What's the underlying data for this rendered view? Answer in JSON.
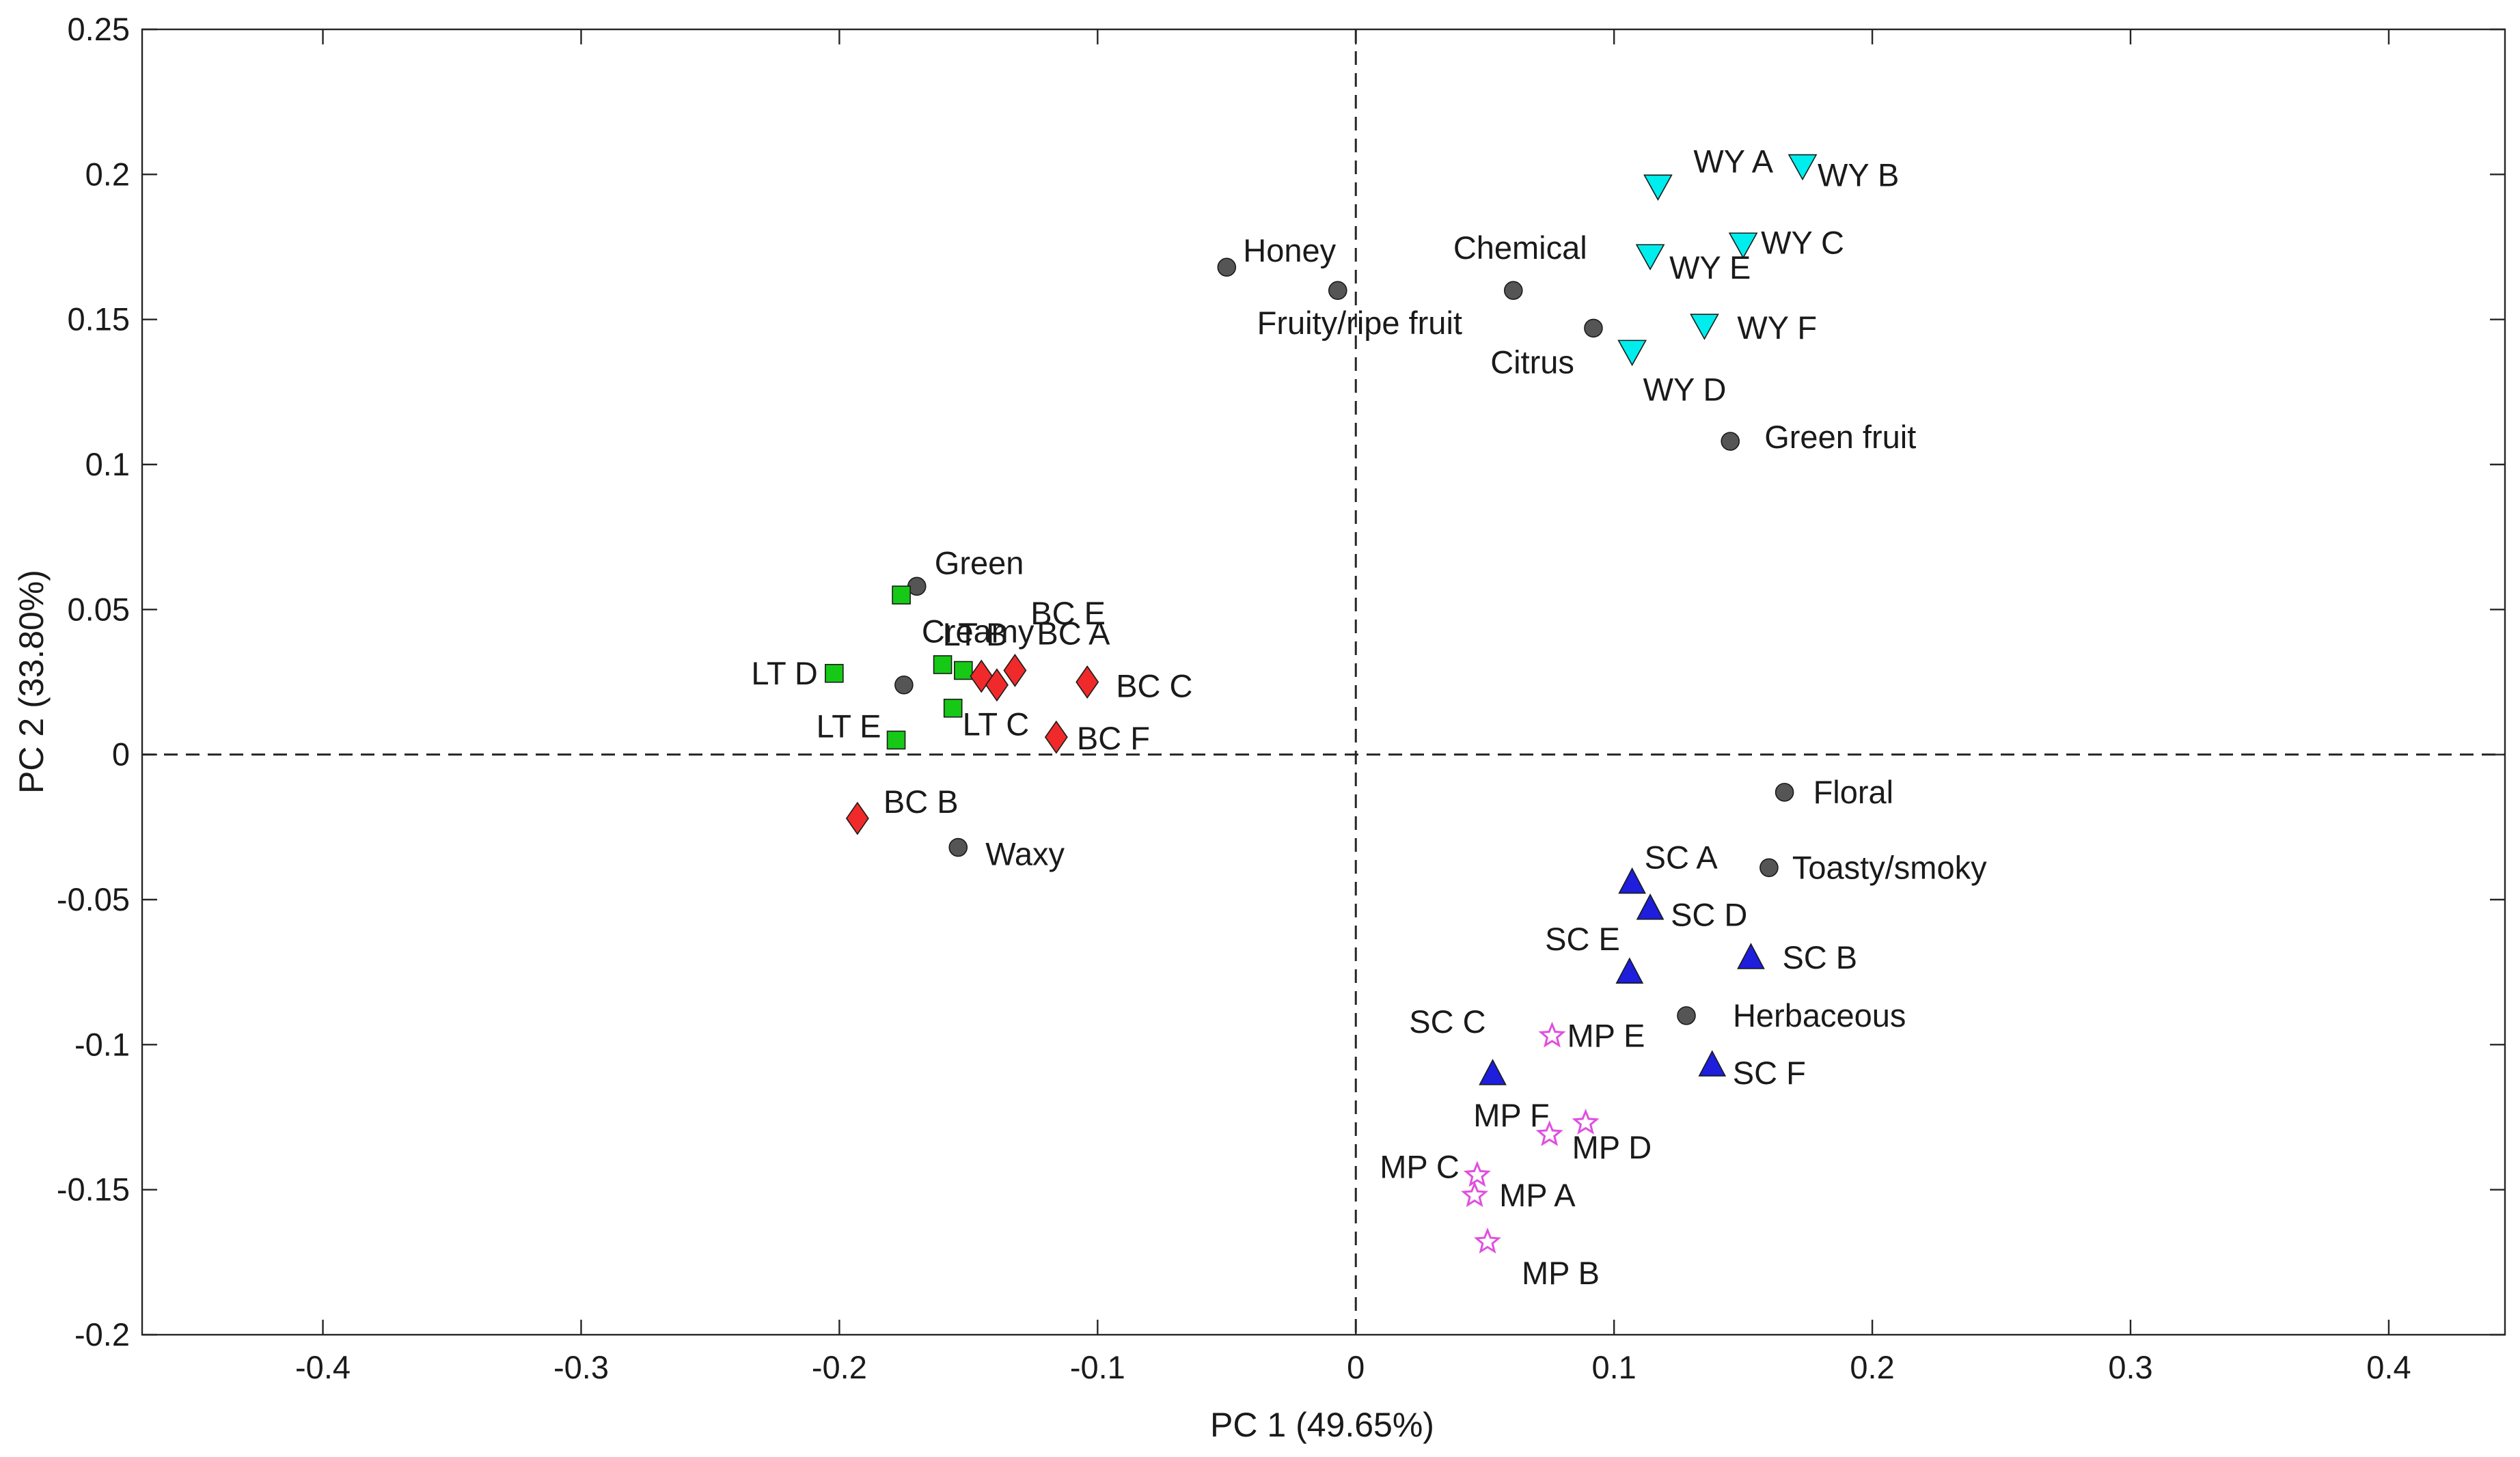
{
  "chart_data": {
    "type": "scatter",
    "title": "",
    "xlabel": "PC 1 (49.65%)",
    "ylabel": "PC 2 (33.80%)",
    "xlim": [
      -0.47,
      0.445
    ],
    "ylim": [
      -0.2,
      0.25
    ],
    "xticks": [
      -0.4,
      -0.3,
      -0.2,
      -0.1,
      0,
      0.1,
      0.2,
      0.3,
      0.4
    ],
    "xtick_labels": [
      "-0.4",
      "-0.3",
      "-0.2",
      "-0.1",
      "0",
      "0.1",
      "0.2",
      "0.3",
      "0.4"
    ],
    "yticks": [
      -0.2,
      -0.15,
      -0.1,
      -0.05,
      0,
      0.05,
      0.1,
      0.15,
      0.2,
      0.25
    ],
    "ytick_labels": [
      "-0.2",
      "-0.15",
      "-0.1",
      "-0.05",
      "0",
      "0.05",
      "0.1",
      "0.15",
      "0.2",
      "0.25"
    ],
    "reference_lines": {
      "x": 0,
      "y": 0
    },
    "colors": {
      "attribute": "#555555",
      "WY": "#00eded",
      "SC": "#1e1edc",
      "LT": "#16c916",
      "BC": "#f02a2a",
      "MP": "#e04fe0"
    },
    "series": [
      {
        "name": "Attributes",
        "group": "attribute",
        "marker": "circle",
        "points": [
          {
            "label": "Honey",
            "x": -0.05,
            "y": 0.168
          },
          {
            "label": "Fruity/ripe fruit",
            "x": -0.007,
            "y": 0.16
          },
          {
            "label": "Chemical",
            "x": 0.061,
            "y": 0.16
          },
          {
            "label": "Citrus",
            "x": 0.092,
            "y": 0.147
          },
          {
            "label": "Green fruit",
            "x": 0.145,
            "y": 0.108
          },
          {
            "label": "Green",
            "x": -0.17,
            "y": 0.058
          },
          {
            "label": "Creamy",
            "x": -0.175,
            "y": 0.024
          },
          {
            "label": "Waxy",
            "x": -0.154,
            "y": -0.032
          },
          {
            "label": "Floral",
            "x": 0.166,
            "y": -0.013
          },
          {
            "label": "Toasty/smoky",
            "x": 0.16,
            "y": -0.039
          },
          {
            "label": "Herbaceous",
            "x": 0.128,
            "y": -0.09
          }
        ]
      },
      {
        "name": "WY",
        "group": "WY",
        "marker": "triangle-down",
        "points": [
          {
            "label": "WY A",
            "x": 0.117,
            "y": 0.196
          },
          {
            "label": "WY B",
            "x": 0.173,
            "y": 0.203
          },
          {
            "label": "WY C",
            "x": 0.15,
            "y": 0.176
          },
          {
            "label": "WY E",
            "x": 0.114,
            "y": 0.172
          },
          {
            "label": "WY F",
            "x": 0.135,
            "y": 0.148
          },
          {
            "label": "WY D",
            "x": 0.107,
            "y": 0.139
          }
        ]
      },
      {
        "name": "LT",
        "group": "LT",
        "marker": "square",
        "points": [
          {
            "label": "",
            "x": -0.176,
            "y": 0.055
          },
          {
            "label": "LT B",
            "x": -0.16,
            "y": 0.031
          },
          {
            "label": "",
            "x": -0.152,
            "y": 0.029
          },
          {
            "label": "LT D",
            "x": -0.202,
            "y": 0.028
          },
          {
            "label": "LT C",
            "x": -0.156,
            "y": 0.016
          },
          {
            "label": "LT E",
            "x": -0.178,
            "y": 0.005
          }
        ]
      },
      {
        "name": "BC",
        "group": "BC",
        "marker": "diamond",
        "points": [
          {
            "label": "BC E",
            "x": -0.145,
            "y": 0.027
          },
          {
            "label": "BC A",
            "x": -0.132,
            "y": 0.029
          },
          {
            "label": "",
            "x": -0.139,
            "y": 0.024
          },
          {
            "label": "BC C",
            "x": -0.104,
            "y": 0.025
          },
          {
            "label": "BC F",
            "x": -0.116,
            "y": 0.006
          },
          {
            "label": "BC B",
            "x": -0.193,
            "y": -0.022
          }
        ]
      },
      {
        "name": "SC",
        "group": "SC",
        "marker": "triangle-up",
        "points": [
          {
            "label": "SC A",
            "x": 0.107,
            "y": -0.044
          },
          {
            "label": "SC D",
            "x": 0.114,
            "y": -0.053
          },
          {
            "label": "SC B",
            "x": 0.153,
            "y": -0.07
          },
          {
            "label": "SC E",
            "x": 0.106,
            "y": -0.075
          },
          {
            "label": "SC F",
            "x": 0.138,
            "y": -0.107
          },
          {
            "label": "SC C",
            "x": 0.053,
            "y": -0.11
          }
        ]
      },
      {
        "name": "MP",
        "group": "MP",
        "marker": "star",
        "points": [
          {
            "label": "MP E",
            "x": 0.076,
            "y": -0.097
          },
          {
            "label": "MP D",
            "x": 0.089,
            "y": -0.127
          },
          {
            "label": "MP F",
            "x": 0.075,
            "y": -0.131
          },
          {
            "label": "MP C",
            "x": 0.047,
            "y": -0.145
          },
          {
            "label": "MP A",
            "x": 0.046,
            "y": -0.152
          },
          {
            "label": "MP B",
            "x": 0.051,
            "y": -0.168
          }
        ]
      }
    ]
  }
}
